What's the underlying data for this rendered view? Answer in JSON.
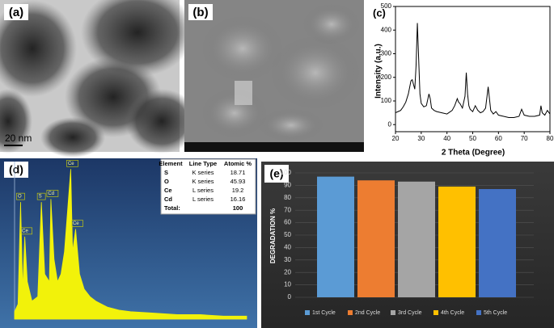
{
  "panels": {
    "a": "(a)",
    "b": "(b)",
    "c": "(c)",
    "d": "(d)",
    "e": "(e)"
  },
  "scale_bar": "20 nm",
  "eds_table": {
    "header": [
      "Element",
      "Line Type",
      "Atomic %"
    ],
    "rows": [
      [
        "S",
        "K series",
        "18.71"
      ],
      [
        "O",
        "K series",
        "45.93"
      ],
      [
        "Ce",
        "L series",
        "19.2"
      ],
      [
        "Cd",
        "L series",
        "16.16"
      ],
      [
        "Total:",
        "",
        "100"
      ]
    ]
  },
  "chart_data": [
    {
      "type": "line",
      "xlabel": "2 Theta (Degree)",
      "ylabel": "Intensity (a.u.)",
      "color": "#000000",
      "x": [
        20,
        21,
        22,
        23,
        24,
        25,
        26,
        26.5,
        27,
        27.5,
        28,
        28.5,
        29,
        29.5,
        30,
        31,
        32,
        33,
        33.5,
        34,
        35,
        36,
        38,
        40,
        42,
        43,
        44,
        44.5,
        45,
        46,
        47,
        47.5,
        48,
        48.5,
        49,
        50,
        51,
        52,
        53,
        54,
        55,
        56,
        56.5,
        57,
        58,
        59,
        60,
        62,
        64,
        66,
        68,
        69,
        70,
        72,
        74,
        76,
        76.5,
        77,
        78,
        79,
        80
      ],
      "values": [
        50,
        55,
        60,
        75,
        95,
        130,
        185,
        190,
        170,
        150,
        250,
        430,
        280,
        130,
        90,
        75,
        80,
        130,
        110,
        70,
        60,
        55,
        50,
        45,
        60,
        80,
        110,
        95,
        90,
        70,
        120,
        220,
        130,
        80,
        65,
        55,
        80,
        60,
        50,
        55,
        70,
        160,
        110,
        60,
        45,
        55,
        40,
        35,
        30,
        30,
        35,
        65,
        40,
        35,
        35,
        40,
        80,
        50,
        40,
        60,
        45
      ],
      "xlim": [
        20,
        80
      ],
      "xticks": [
        20,
        30,
        40,
        50,
        60,
        70,
        80
      ],
      "ylim": [
        -30,
        500
      ],
      "yticks": [
        0,
        100,
        200,
        300,
        400,
        500
      ]
    },
    {
      "type": "area",
      "color": "#f2f20a",
      "x": [
        0,
        0.3,
        0.52,
        0.7,
        0.88,
        1.1,
        1.5,
        2.0,
        2.31,
        2.6,
        3.0,
        3.13,
        3.4,
        3.7,
        4.0,
        4.3,
        4.84,
        5.0,
        5.26,
        5.6,
        6.0,
        6.5,
        7.0,
        8.0,
        9,
        10,
        12,
        14,
        16,
        18,
        20
      ],
      "values": [
        5,
        10,
        78,
        20,
        55,
        25,
        12,
        15,
        78,
        30,
        25,
        80,
        40,
        25,
        30,
        45,
        100,
        45,
        60,
        30,
        20,
        15,
        12,
        8,
        6,
        5,
        4,
        3,
        3,
        2,
        2
      ],
      "xlim": [
        0,
        20
      ],
      "ylim": [
        0,
        105
      ],
      "peak_labels": [
        {
          "label": "O",
          "x": 0.52
        },
        {
          "label": "Ce",
          "x": 0.88
        },
        {
          "label": "S",
          "x": 2.31
        },
        {
          "label": "Cd",
          "x": 3.13
        },
        {
          "label": "Ce",
          "x": 4.84
        },
        {
          "label": "Ce",
          "x": 5.26
        }
      ]
    },
    {
      "type": "bar",
      "ylabel": "DEGRADATION %",
      "categories": [
        "1st Cycle",
        "2nd Cycle",
        "3rd Cycle",
        "4th Cycle",
        "5th Cycle"
      ],
      "values": [
        97,
        94,
        93,
        89,
        87
      ],
      "colors": [
        "#5b9bd5",
        "#ed7d31",
        "#a5a5a5",
        "#ffc000",
        "#4472c4"
      ],
      "ylim": [
        0,
        100
      ],
      "yticks": [
        0,
        10,
        20,
        30,
        40,
        50,
        60,
        70,
        80,
        90,
        100
      ],
      "grid": true,
      "legend": "bottom"
    }
  ]
}
